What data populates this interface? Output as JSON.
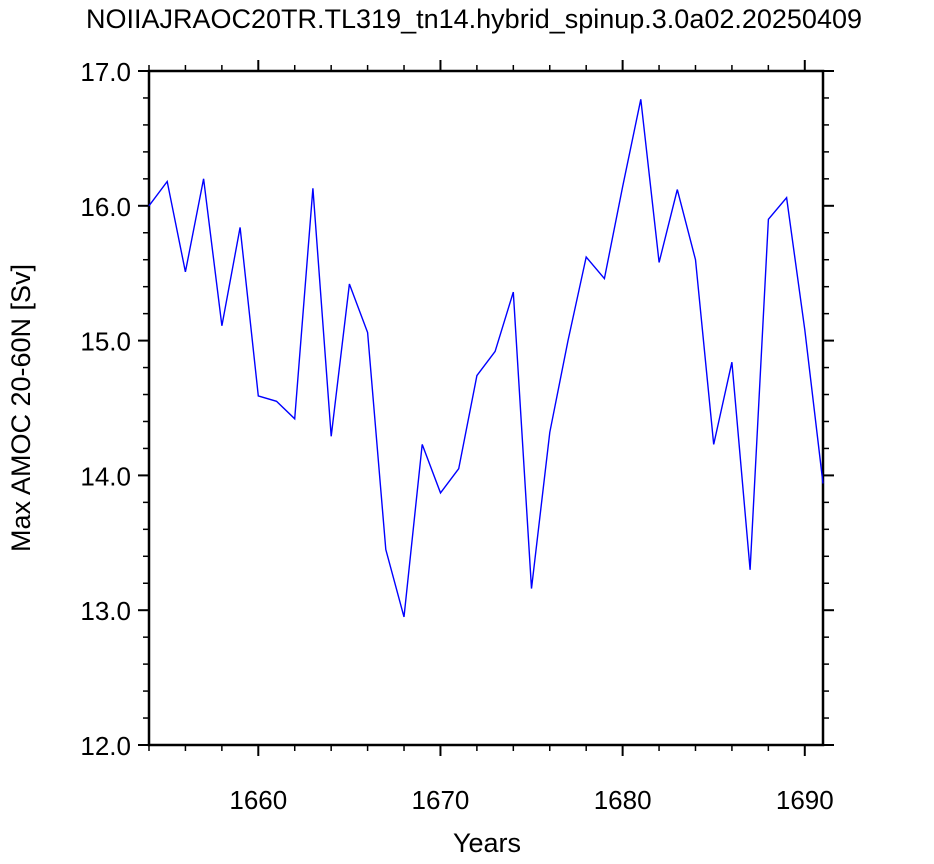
{
  "chart_data": {
    "type": "line",
    "title": "NOIIAJRAOC20TR.TL319_tn14.hybrid_spinup.3.0a02.20250409",
    "xlabel": "Years",
    "ylabel": "Max AMOC 20-60N [Sv]",
    "xlim": [
      1654,
      1691
    ],
    "ylim": [
      12.0,
      17.0
    ],
    "x_ticks": [
      1660,
      1670,
      1680,
      1690
    ],
    "x_tick_labels": [
      "1660",
      "1670",
      "1680",
      "1690"
    ],
    "y_ticks": [
      12.0,
      13.0,
      14.0,
      15.0,
      16.0,
      17.0
    ],
    "y_tick_labels": [
      "12.0",
      "13.0",
      "14.0",
      "15.0",
      "16.0",
      "17.0"
    ],
    "grid": false,
    "line_color": "#0000ff",
    "x": [
      1654,
      1655,
      1656,
      1657,
      1658,
      1659,
      1660,
      1661,
      1662,
      1663,
      1664,
      1665,
      1666,
      1667,
      1668,
      1669,
      1670,
      1671,
      1672,
      1673,
      1674,
      1675,
      1676,
      1677,
      1678,
      1679,
      1680,
      1681,
      1682,
      1683,
      1684,
      1685,
      1686,
      1687,
      1688,
      1689,
      1690,
      1691
    ],
    "y": [
      16.0,
      16.18,
      15.51,
      16.2,
      15.11,
      15.84,
      14.59,
      14.55,
      14.42,
      16.13,
      14.29,
      15.42,
      15.06,
      13.45,
      12.95,
      14.23,
      13.87,
      14.05,
      14.74,
      14.92,
      15.36,
      13.16,
      14.32,
      15.0,
      15.62,
      15.46,
      16.14,
      16.79,
      15.58,
      16.12,
      15.6,
      14.23,
      14.84,
      13.3,
      15.9,
      16.06,
      15.08,
      13.94
    ]
  }
}
